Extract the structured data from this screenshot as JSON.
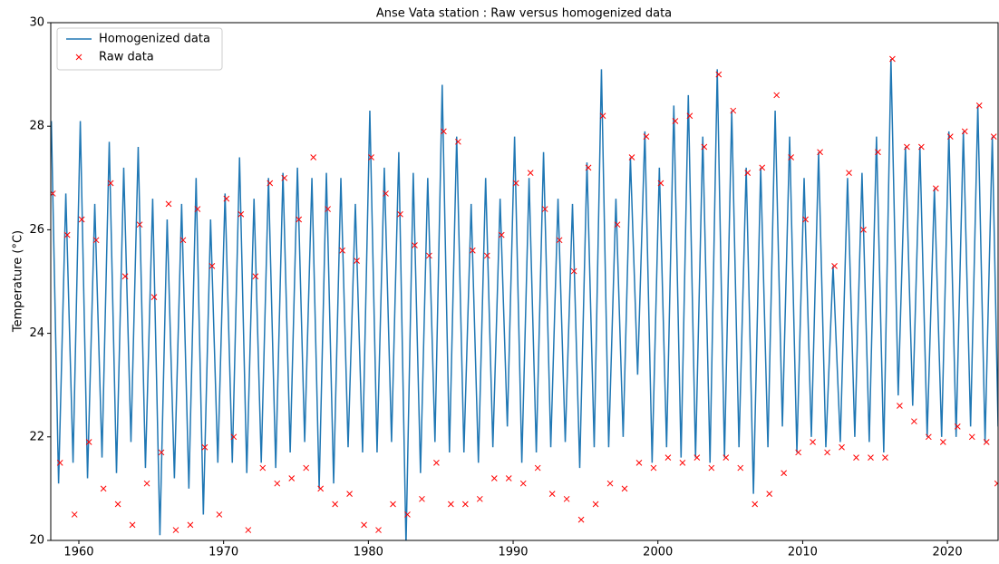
{
  "chart_data": {
    "type": "line",
    "title": "Anse Vata station : Raw versus homogenized data",
    "ylabel": "Temperature (°C)",
    "xlim": [
      1958.06,
      2023.5
    ],
    "ylim": [
      20,
      30
    ],
    "xticks": [
      1960,
      1970,
      1980,
      1990,
      2000,
      2010,
      2020
    ],
    "yticks": [
      20,
      22,
      24,
      26,
      28,
      30
    ],
    "grid": false,
    "legend": "upper left",
    "series": [
      {
        "name": "Homogenized data",
        "color": "#1f77b4",
        "linestyle": "solid",
        "x": [
          1958.1,
          1958.6,
          1959.1,
          1959.6,
          1960.1,
          1960.6,
          1961.1,
          1961.6,
          1962.1,
          1962.6,
          1963.1,
          1963.6,
          1964.1,
          1964.6,
          1965.1,
          1965.6,
          1966.1,
          1966.6,
          1967.1,
          1967.6,
          1968.1,
          1968.6,
          1969.1,
          1969.6,
          1970.1,
          1970.6,
          1971.1,
          1971.6,
          1972.1,
          1972.6,
          1973.1,
          1973.6,
          1974.1,
          1974.6,
          1975.1,
          1975.6,
          1976.1,
          1976.6,
          1977.1,
          1977.6,
          1978.1,
          1978.6,
          1979.1,
          1979.6,
          1980.1,
          1980.6,
          1981.1,
          1981.6,
          1982.1,
          1982.6,
          1983.1,
          1983.6,
          1984.1,
          1984.6,
          1985.1,
          1985.6,
          1986.1,
          1986.6,
          1987.1,
          1987.6,
          1988.1,
          1988.6,
          1989.1,
          1989.6,
          1990.1,
          1990.6,
          1991.1,
          1991.6,
          1992.1,
          1992.6,
          1993.1,
          1993.6,
          1994.1,
          1994.6,
          1995.1,
          1995.6,
          1996.1,
          1996.6,
          1997.1,
          1997.6,
          1998.1,
          1998.6,
          1999.1,
          1999.6,
          2000.1,
          2000.6,
          2001.1,
          2001.6,
          2002.1,
          2002.6,
          2003.1,
          2003.6,
          2004.1,
          2004.6,
          2005.1,
          2005.6,
          2006.1,
          2006.6,
          2007.1,
          2007.6,
          2008.1,
          2008.6,
          2009.1,
          2009.6,
          2010.1,
          2010.6,
          2011.1,
          2011.6,
          2012.1,
          2012.6,
          2013.1,
          2013.6,
          2014.1,
          2014.6,
          2015.1,
          2015.6,
          2016.1,
          2016.6,
          2017.1,
          2017.6,
          2018.1,
          2018.6,
          2019.1,
          2019.6,
          2020.1,
          2020.6,
          2021.1,
          2021.6,
          2022.1,
          2022.6,
          2023.1,
          2023.5
        ],
        "values": [
          28.1,
          21.1,
          26.7,
          21.5,
          28.1,
          21.2,
          26.5,
          21.6,
          27.7,
          21.3,
          27.2,
          21.9,
          27.6,
          21.4,
          26.6,
          20.1,
          26.2,
          21.2,
          26.5,
          21.0,
          27.0,
          20.5,
          26.2,
          21.5,
          26.7,
          21.5,
          27.4,
          21.3,
          26.6,
          21.5,
          27.0,
          21.4,
          27.1,
          21.7,
          27.2,
          21.9,
          27.0,
          21.0,
          27.1,
          21.1,
          27.0,
          21.8,
          26.5,
          21.7,
          28.3,
          21.7,
          27.2,
          21.9,
          27.5,
          19.9,
          27.1,
          21.3,
          27.0,
          21.9,
          28.8,
          21.7,
          27.8,
          21.7,
          26.5,
          21.5,
          27.0,
          21.8,
          26.6,
          22.2,
          27.8,
          21.5,
          27.0,
          21.7,
          27.5,
          21.8,
          26.6,
          21.9,
          26.5,
          21.4,
          27.3,
          21.8,
          29.1,
          21.8,
          26.6,
          22.0,
          27.4,
          23.2,
          27.9,
          21.5,
          27.2,
          21.8,
          28.4,
          21.6,
          28.6,
          21.6,
          27.8,
          21.5,
          29.1,
          21.6,
          28.3,
          21.8,
          27.2,
          20.9,
          27.2,
          21.8,
          28.3,
          22.2,
          27.8,
          21.7,
          27.0,
          22.0,
          27.5,
          21.8,
          25.3,
          21.9,
          27.0,
          22.0,
          27.1,
          21.9,
          27.8,
          21.7,
          29.3,
          22.8,
          27.6,
          22.6,
          27.6,
          22.0,
          26.8,
          22.0,
          27.9,
          22.0,
          27.9,
          22.2,
          28.4,
          21.9,
          27.8,
          22.2
        ]
      },
      {
        "name": "Raw data",
        "color": "#ff0000",
        "linestyle": "none",
        "marker": "x",
        "x": [
          1958.2,
          1958.7,
          1959.2,
          1959.7,
          1960.2,
          1960.7,
          1961.2,
          1961.7,
          1962.2,
          1962.7,
          1963.2,
          1963.7,
          1964.2,
          1964.7,
          1965.2,
          1965.7,
          1966.2,
          1966.7,
          1967.2,
          1967.7,
          1968.2,
          1968.7,
          1969.2,
          1969.7,
          1970.2,
          1970.7,
          1971.2,
          1971.7,
          1972.2,
          1972.7,
          1973.2,
          1973.7,
          1974.2,
          1974.7,
          1975.2,
          1975.7,
          1976.2,
          1976.7,
          1977.2,
          1977.7,
          1978.2,
          1978.7,
          1979.2,
          1979.7,
          1980.2,
          1980.7,
          1981.2,
          1981.7,
          1982.2,
          1982.7,
          1983.2,
          1983.7,
          1984.2,
          1984.7,
          1985.2,
          1985.7,
          1986.2,
          1986.7,
          1987.2,
          1987.7,
          1988.2,
          1988.7,
          1989.2,
          1989.7,
          1990.2,
          1990.7,
          1991.2,
          1991.7,
          1992.2,
          1992.7,
          1993.2,
          1993.7,
          1994.2,
          1994.7,
          1995.2,
          1995.7,
          1996.2,
          1996.7,
          1997.2,
          1997.7,
          1998.2,
          1998.7,
          1999.2,
          1999.7,
          2000.2,
          2000.7,
          2001.2,
          2001.7,
          2002.2,
          2002.7,
          2003.2,
          2003.7,
          2004.2,
          2004.7,
          2005.2,
          2005.7,
          2006.2,
          2006.7,
          2007.2,
          2007.7,
          2008.2,
          2008.7,
          2009.2,
          2009.7,
          2010.2,
          2010.7,
          2011.2,
          2011.7,
          2012.2,
          2012.7,
          2013.2,
          2013.7,
          2014.2,
          2014.7,
          2015.2,
          2015.7,
          2016.2,
          2016.7,
          2017.2,
          2017.7,
          2018.2,
          2018.7,
          2019.2,
          2019.7,
          2020.2,
          2020.7,
          2021.2,
          2021.7,
          2022.2,
          2022.7,
          2023.2,
          2023.45
        ],
        "values": [
          26.7,
          21.5,
          25.9,
          20.5,
          26.2,
          21.9,
          25.8,
          21.0,
          26.9,
          20.7,
          25.1,
          20.3,
          26.1,
          21.1,
          24.7,
          21.7,
          26.5,
          20.2,
          25.8,
          20.3,
          26.4,
          21.8,
          25.3,
          20.5,
          26.6,
          22.0,
          26.3,
          20.2,
          25.1,
          21.4,
          26.9,
          21.1,
          27.0,
          21.2,
          26.2,
          21.4,
          27.4,
          21.0,
          26.4,
          20.7,
          25.6,
          20.9,
          25.4,
          20.3,
          27.4,
          20.2,
          26.7,
          20.7,
          26.3,
          20.5,
          25.7,
          20.8,
          25.5,
          21.5,
          27.9,
          20.7,
          27.7,
          20.7,
          25.6,
          20.8,
          25.5,
          21.2,
          25.9,
          21.2,
          26.9,
          21.1,
          27.1,
          21.4,
          26.4,
          20.9,
          25.8,
          20.8,
          25.2,
          20.4,
          27.2,
          20.7,
          28.2,
          21.1,
          26.1,
          21.0,
          27.4,
          21.5,
          27.8,
          21.4,
          26.9,
          21.6,
          28.1,
          21.5,
          28.2,
          21.6,
          27.6,
          21.4,
          29.0,
          21.6,
          28.3,
          21.4,
          27.1,
          20.7,
          27.2,
          20.9,
          28.6,
          21.3,
          27.4,
          21.7,
          26.2,
          21.9,
          27.5,
          21.7,
          25.3,
          21.8,
          27.1,
          21.6,
          26.0,
          21.6,
          27.5,
          21.6,
          29.3,
          22.6,
          27.6,
          22.3,
          27.6,
          22.0,
          26.8,
          21.9,
          27.8,
          22.2,
          27.9,
          22.0,
          28.4,
          21.9,
          27.8,
          21.1
        ]
      }
    ]
  }
}
